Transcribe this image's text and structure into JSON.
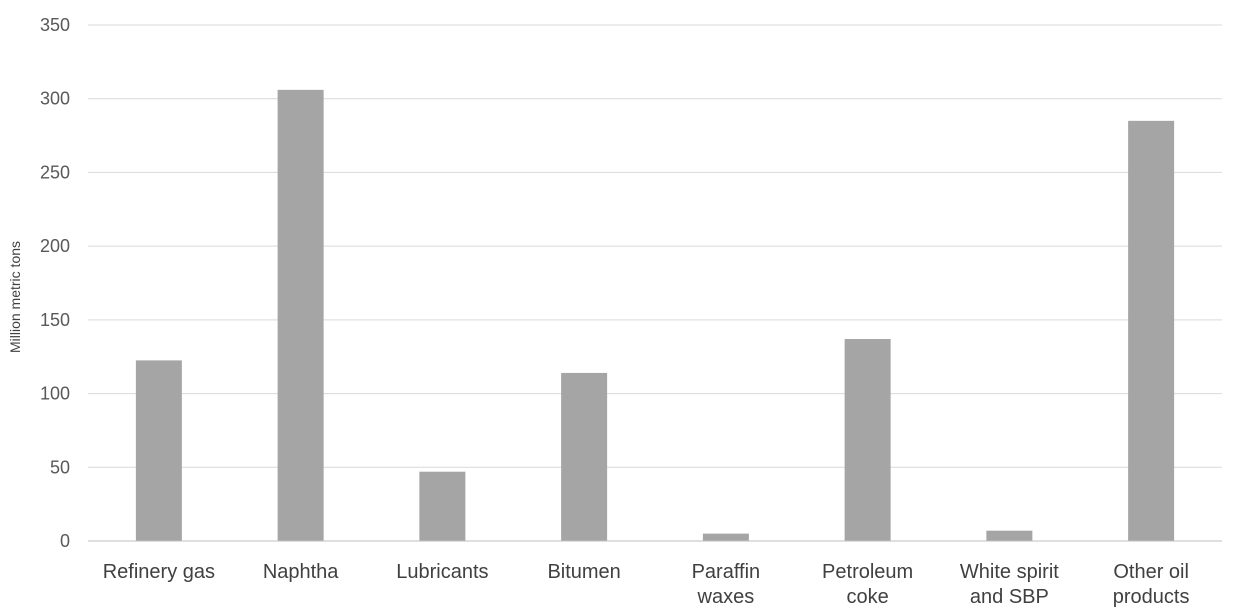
{
  "chart_data": {
    "type": "bar",
    "title": "",
    "xlabel": "",
    "ylabel": "Million metric tons",
    "ylim": [
      0,
      350
    ],
    "yticks": [
      0,
      50,
      100,
      150,
      200,
      250,
      300,
      350
    ],
    "grid": true,
    "legend": "none",
    "categories": [
      [
        "Refinery gas"
      ],
      [
        "Naphtha"
      ],
      [
        "Lubricants"
      ],
      [
        "Bitumen"
      ],
      [
        "Paraffin",
        "waxes"
      ],
      [
        "Petroleum",
        "coke"
      ],
      [
        "White spirit",
        "and SBP"
      ],
      [
        "Other oil",
        "products"
      ]
    ],
    "values": [
      122.5,
      306,
      47,
      114,
      5,
      137,
      7,
      285
    ],
    "colors": {
      "bar": "#a5a5a5",
      "grid": "#d9d9d9",
      "axis": "#bfbfbf"
    }
  }
}
